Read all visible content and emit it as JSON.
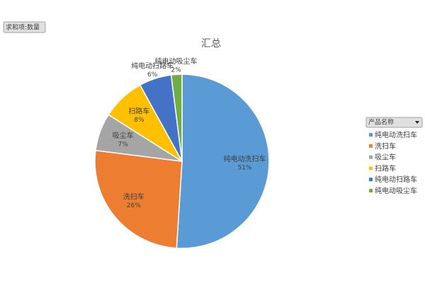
{
  "chart_data": {
    "type": "pie",
    "title": "汇总",
    "field_button": "求和项:数量",
    "legend_title": "产品名称",
    "categories": [
      "纯电动洗扫车",
      "洗扫车",
      "吸尘车",
      "扫路车",
      "纯电动扫路车",
      "纯电动吸尘车"
    ],
    "values": [
      51,
      26,
      7,
      8,
      6,
      2
    ],
    "value_labels": [
      "51%",
      "26%",
      "7%",
      "8%",
      "6%",
      "2%"
    ],
    "colors": [
      "#5b9bd5",
      "#ed7d31",
      "#a5a5a5",
      "#ffc000",
      "#4472c4",
      "#70ad47"
    ],
    "legend": "right"
  }
}
